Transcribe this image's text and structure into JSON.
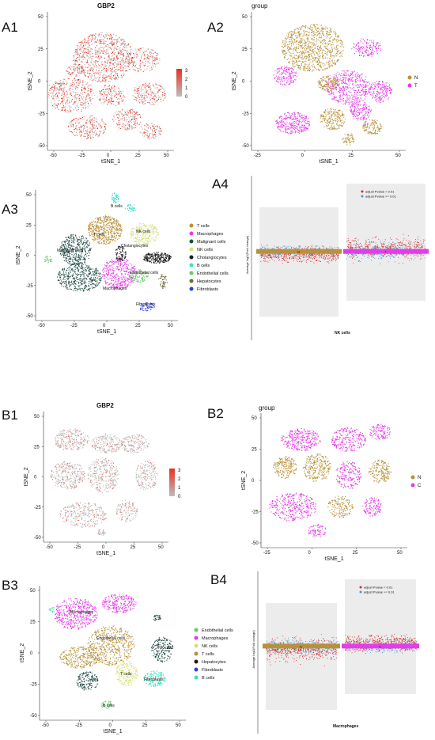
{
  "panels": {
    "A1": {
      "label": "A1",
      "title": "GBP2",
      "xlabel": "tSNE_1",
      "ylabel": "tSNE_2",
      "xticks": [
        "-50",
        "-25",
        "0",
        "25",
        "50"
      ],
      "yticks": [
        "50",
        "25",
        "0",
        "-25",
        "-50"
      ],
      "colorbar_ticks": [
        "3",
        "2",
        "1",
        "0"
      ]
    },
    "A2": {
      "label": "A2",
      "title": "group",
      "xlabel": "tSNE_1",
      "ylabel": "tSNE_2",
      "xticks": [
        "-25",
        "0",
        "25",
        "50"
      ],
      "yticks": [
        "50",
        "25",
        "0",
        "-25",
        "-50"
      ],
      "legend": [
        "N",
        "T"
      ]
    },
    "A3": {
      "label": "A3",
      "xlabel": "tSNE_1",
      "ylabel": "tSNE_2",
      "xticks": [
        "-50",
        "-25",
        "0",
        "25",
        "50"
      ],
      "yticks": [
        "50",
        "25",
        "0",
        "-25",
        "-50"
      ],
      "legend": [
        "T cells",
        "Macrophages",
        "Malignant cells",
        "NK cells",
        "Cholangiocytes",
        "B cells",
        "Endothelial cells",
        "Hepatocytes",
        "Fibroblasts"
      ],
      "cluster_labels": [
        "B cells",
        "T cells",
        "NK cells",
        "Cholangiocytes",
        "Malignant cells",
        "Endothelial cells",
        "Macrophages",
        "Fibroblasts"
      ]
    },
    "A4": {
      "label": "A4",
      "xlabel": "NK cells",
      "ylabel": "Average log2(Fold change)",
      "legend": [
        "adjust Pvalue < 0.01",
        "adjust Pvalue >= 0.01"
      ],
      "bar_labels": [
        "N",
        "T"
      ]
    },
    "B1": {
      "label": "B1",
      "title": "GBP2",
      "xlabel": "tSNE_1",
      "ylabel": "tSNE_2",
      "xticks": [
        "-50",
        "-25",
        "0",
        "25",
        "50"
      ],
      "yticks": [
        "50",
        "25",
        "0",
        "-25",
        "-50"
      ],
      "colorbar_ticks": [
        "3",
        "2",
        "1",
        "0"
      ]
    },
    "B2": {
      "label": "B2",
      "title": "group",
      "xlabel": "tSNE_1",
      "ylabel": "tSNE_2",
      "xticks": [
        "-25",
        "0",
        "25",
        "50"
      ],
      "yticks": [
        "50",
        "25",
        "0",
        "-25",
        "-50"
      ],
      "legend": [
        "N",
        "C"
      ]
    },
    "B3": {
      "label": "B3",
      "xlabel": "tSNE_1",
      "ylabel": "tSNE_2",
      "xticks": [
        "-50",
        "-25",
        "0",
        "25",
        "50"
      ],
      "yticks": [
        "50",
        "25",
        "0",
        "-25",
        "-50"
      ],
      "legend": [
        "Endothelial cells",
        "Macrophages",
        "NK cells",
        "T cells",
        "Hepatocytes",
        "Fibroblasts",
        "B cells"
      ],
      "cluster_labels": [
        "Macrophages",
        "Endothelial cells",
        "NK cells",
        "T cells",
        "Fibroblasts",
        "B cells"
      ]
    },
    "B4": {
      "label": "B4",
      "xlabel": "Macrophages",
      "ylabel": "Average log2(Fold change)",
      "legend": [
        "adjust Pvalue < 0.01",
        "adjust Pvalue >= 0.01"
      ],
      "bar_labels": [
        "N",
        "C"
      ]
    }
  },
  "colors": {
    "low": "#bdbdbd",
    "high": "#e8311f",
    "group_N": "#b8923a",
    "group_T": "#e43ce8",
    "tcells": "#b8923a",
    "macrophages": "#e43ce8",
    "malignant": "#1f4a44",
    "nk": "#d6e07a",
    "cholangiocytes": "#1a1a1a",
    "bcells": "#3fe0c2",
    "endothelial": "#66cc66",
    "hepatocytes": "#6b6b3a",
    "fibroblasts": "#2b3fd6",
    "sig_up": "#d62728",
    "nonsig": "#4a90d9"
  },
  "chart_data": [
    {
      "type": "scatter",
      "panel": "A1",
      "title": "GBP2",
      "xlabel": "tSNE_1",
      "ylabel": "tSNE_2",
      "xlim": [
        -60,
        55
      ],
      "ylim": [
        -52,
        55
      ],
      "color_scale": [
        0,
        3
      ]
    },
    {
      "type": "scatter",
      "panel": "A2",
      "title": "group",
      "xlabel": "tSNE_1",
      "ylabel": "tSNE_2",
      "series": [
        {
          "name": "N"
        },
        {
          "name": "T"
        }
      ]
    },
    {
      "type": "scatter",
      "panel": "A3",
      "xlabel": "tSNE_1",
      "ylabel": "tSNE_2",
      "series": [
        {
          "name": "T cells"
        },
        {
          "name": "Macrophages"
        },
        {
          "name": "Malignant cells"
        },
        {
          "name": "NK cells"
        },
        {
          "name": "Cholangiocytes"
        },
        {
          "name": "B cells"
        },
        {
          "name": "Endothelial cells"
        },
        {
          "name": "Hepatocytes"
        },
        {
          "name": "Fibroblasts"
        }
      ]
    },
    {
      "type": "scatter",
      "panel": "A4",
      "xlabel": "NK cells",
      "categories": [
        "N",
        "T"
      ]
    },
    {
      "type": "scatter",
      "panel": "B1",
      "title": "GBP2",
      "xlabel": "tSNE_1",
      "ylabel": "tSNE_2",
      "color_scale": [
        0,
        3
      ]
    },
    {
      "type": "scatter",
      "panel": "B2",
      "title": "group",
      "xlabel": "tSNE_1",
      "ylabel": "tSNE_2",
      "series": [
        {
          "name": "N"
        },
        {
          "name": "C"
        }
      ]
    },
    {
      "type": "scatter",
      "panel": "B3",
      "xlabel": "tSNE_1",
      "ylabel": "tSNE_2",
      "series": [
        {
          "name": "Endothelial cells"
        },
        {
          "name": "Macrophages"
        },
        {
          "name": "NK cells"
        },
        {
          "name": "T cells"
        },
        {
          "name": "Hepatocytes"
        },
        {
          "name": "Fibroblasts"
        },
        {
          "name": "B cells"
        }
      ]
    },
    {
      "type": "scatter",
      "panel": "B4",
      "xlabel": "Macrophages",
      "categories": [
        "N",
        "C"
      ]
    }
  ]
}
